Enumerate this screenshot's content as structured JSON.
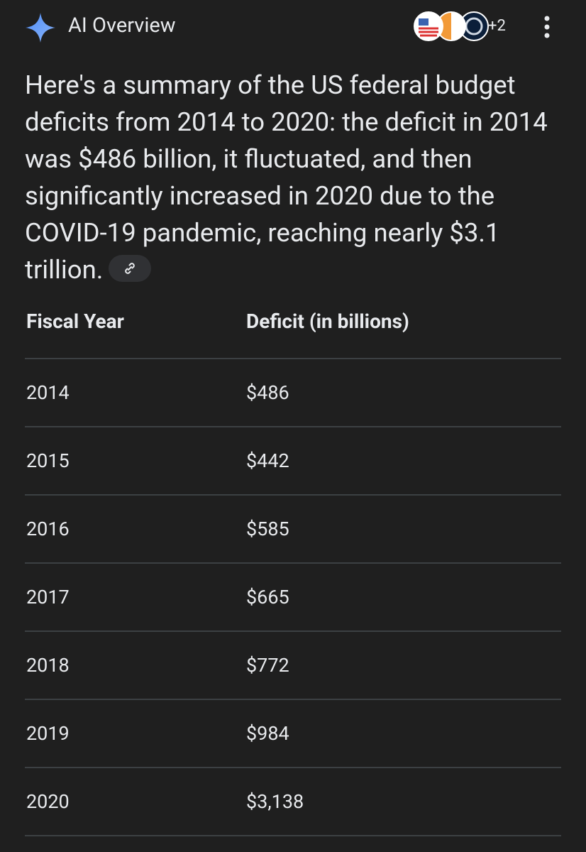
{
  "header": {
    "title": "AI Overview",
    "source_count": "+2"
  },
  "summary": "Here's a summary of the US federal budget deficits from 2014 to 2020: the deficit in 2014 was $486 billion, it fluctuated, and then significantly increased in 2020 due to the COVID-19 pandemic, reaching nearly $3.1 trillion.",
  "table": {
    "columns": [
      "Fiscal Year",
      "Deficit (in billions)"
    ],
    "rows": [
      [
        "2014",
        "$486"
      ],
      [
        "2015",
        "$442"
      ],
      [
        "2016",
        "$585"
      ],
      [
        "2017",
        "$665"
      ],
      [
        "2018",
        "$772"
      ],
      [
        "2019",
        "$984"
      ],
      [
        "2020",
        "$3,138"
      ]
    ]
  }
}
